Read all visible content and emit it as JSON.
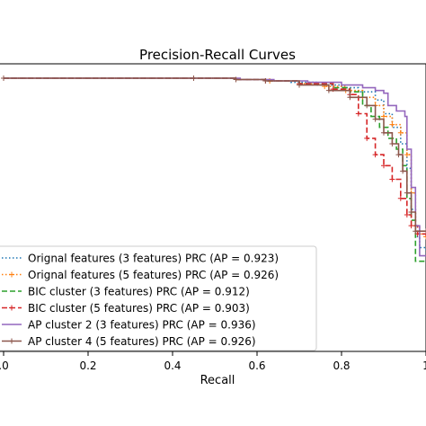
{
  "chart_data": {
    "type": "line",
    "title": "Precision-Recall Curves",
    "xlabel": "Recall",
    "ylabel": "",
    "xlim": [
      0.0,
      1.0
    ],
    "ylim": [
      0.0,
      1.05
    ],
    "x_ticks": [
      0.0,
      0.2,
      0.4,
      0.6,
      0.8,
      1.0
    ],
    "x_tick_labels": [
      ".0",
      "0.2",
      "0.4",
      "0.6",
      "0.8",
      "1"
    ],
    "grid": false,
    "legend_position": "lower-left",
    "series": [
      {
        "name": "Orignal features (3 features) PRC (AP = 0.923)",
        "color": "#1f77b4",
        "linestyle": "dotted",
        "marker": "none",
        "points": [
          [
            0.0,
            1.0
          ],
          [
            0.45,
            1.0
          ],
          [
            0.55,
            0.995
          ],
          [
            0.62,
            0.99
          ],
          [
            0.68,
            0.985
          ],
          [
            0.74,
            0.975
          ],
          [
            0.8,
            0.965
          ],
          [
            0.84,
            0.95
          ],
          [
            0.88,
            0.92
          ],
          [
            0.9,
            0.87
          ],
          [
            0.92,
            0.82
          ],
          [
            0.94,
            0.76
          ],
          [
            0.955,
            0.67
          ],
          [
            0.965,
            0.52
          ],
          [
            0.975,
            0.42
          ],
          [
            0.985,
            0.38
          ],
          [
            1.0,
            0.36
          ]
        ]
      },
      {
        "name": "Orignal features (5 features) PRC (AP = 0.926)",
        "color": "#ff7f0e",
        "linestyle": "dotted",
        "marker": "+",
        "points": [
          [
            0.0,
            1.0
          ],
          [
            0.45,
            1.0
          ],
          [
            0.55,
            0.995
          ],
          [
            0.63,
            0.99
          ],
          [
            0.7,
            0.98
          ],
          [
            0.76,
            0.97
          ],
          [
            0.81,
            0.955
          ],
          [
            0.85,
            0.93
          ],
          [
            0.88,
            0.9
          ],
          [
            0.9,
            0.86
          ],
          [
            0.92,
            0.83
          ],
          [
            0.94,
            0.8
          ],
          [
            0.955,
            0.72
          ],
          [
            0.965,
            0.58
          ],
          [
            0.975,
            0.46
          ],
          [
            0.985,
            0.43
          ],
          [
            1.0,
            0.42
          ]
        ]
      },
      {
        "name": "BIC cluster (3 features) PRC (AP = 0.912)",
        "color": "#2ca02c",
        "linestyle": "dashed",
        "marker": "none",
        "points": [
          [
            0.0,
            1.0
          ],
          [
            0.45,
            1.0
          ],
          [
            0.55,
            0.995
          ],
          [
            0.62,
            0.99
          ],
          [
            0.7,
            0.98
          ],
          [
            0.78,
            0.965
          ],
          [
            0.82,
            0.95
          ],
          [
            0.85,
            0.9
          ],
          [
            0.87,
            0.86
          ],
          [
            0.89,
            0.82
          ],
          [
            0.91,
            0.78
          ],
          [
            0.93,
            0.74
          ],
          [
            0.945,
            0.68
          ],
          [
            0.955,
            0.56
          ],
          [
            0.965,
            0.48
          ],
          [
            0.975,
            0.33
          ],
          [
            1.0,
            0.33
          ]
        ]
      },
      {
        "name": "BIC cluster (5 features) PRC (AP = 0.903)",
        "color": "#d62728",
        "linestyle": "dashed",
        "marker": "+",
        "points": [
          [
            0.0,
            1.0
          ],
          [
            0.45,
            1.0
          ],
          [
            0.55,
            0.995
          ],
          [
            0.62,
            0.99
          ],
          [
            0.7,
            0.98
          ],
          [
            0.78,
            0.96
          ],
          [
            0.82,
            0.94
          ],
          [
            0.84,
            0.87
          ],
          [
            0.86,
            0.78
          ],
          [
            0.88,
            0.72
          ],
          [
            0.9,
            0.68
          ],
          [
            0.92,
            0.63
          ],
          [
            0.94,
            0.56
          ],
          [
            0.955,
            0.5
          ],
          [
            0.965,
            0.46
          ],
          [
            0.98,
            0.43
          ],
          [
            1.0,
            0.43
          ]
        ]
      },
      {
        "name": "AP cluster 2 (3 features) PRC (AP = 0.936)",
        "color": "#9467bd",
        "linestyle": "solid",
        "marker": "none",
        "points": [
          [
            0.0,
            1.0
          ],
          [
            0.45,
            1.0
          ],
          [
            0.56,
            0.995
          ],
          [
            0.64,
            0.99
          ],
          [
            0.72,
            0.985
          ],
          [
            0.8,
            0.975
          ],
          [
            0.85,
            0.965
          ],
          [
            0.88,
            0.955
          ],
          [
            0.9,
            0.945
          ],
          [
            0.91,
            0.9
          ],
          [
            0.93,
            0.88
          ],
          [
            0.95,
            0.86
          ],
          [
            0.955,
            0.74
          ],
          [
            0.965,
            0.6
          ],
          [
            0.975,
            0.46
          ],
          [
            0.985,
            0.35
          ],
          [
            1.0,
            0.35
          ]
        ]
      },
      {
        "name": "AP cluster 4 (5 features) PRC (AP = 0.926)",
        "color": "#8c564b",
        "linestyle": "solid",
        "marker": "+",
        "points": [
          [
            0.0,
            1.0
          ],
          [
            0.45,
            1.0
          ],
          [
            0.55,
            0.995
          ],
          [
            0.62,
            0.99
          ],
          [
            0.7,
            0.975
          ],
          [
            0.77,
            0.955
          ],
          [
            0.82,
            0.93
          ],
          [
            0.86,
            0.9
          ],
          [
            0.88,
            0.85
          ],
          [
            0.9,
            0.8
          ],
          [
            0.92,
            0.76
          ],
          [
            0.935,
            0.72
          ],
          [
            0.945,
            0.66
          ],
          [
            0.955,
            0.58
          ],
          [
            0.965,
            0.51
          ],
          [
            0.975,
            0.44
          ],
          [
            1.0,
            0.44
          ]
        ]
      }
    ]
  }
}
